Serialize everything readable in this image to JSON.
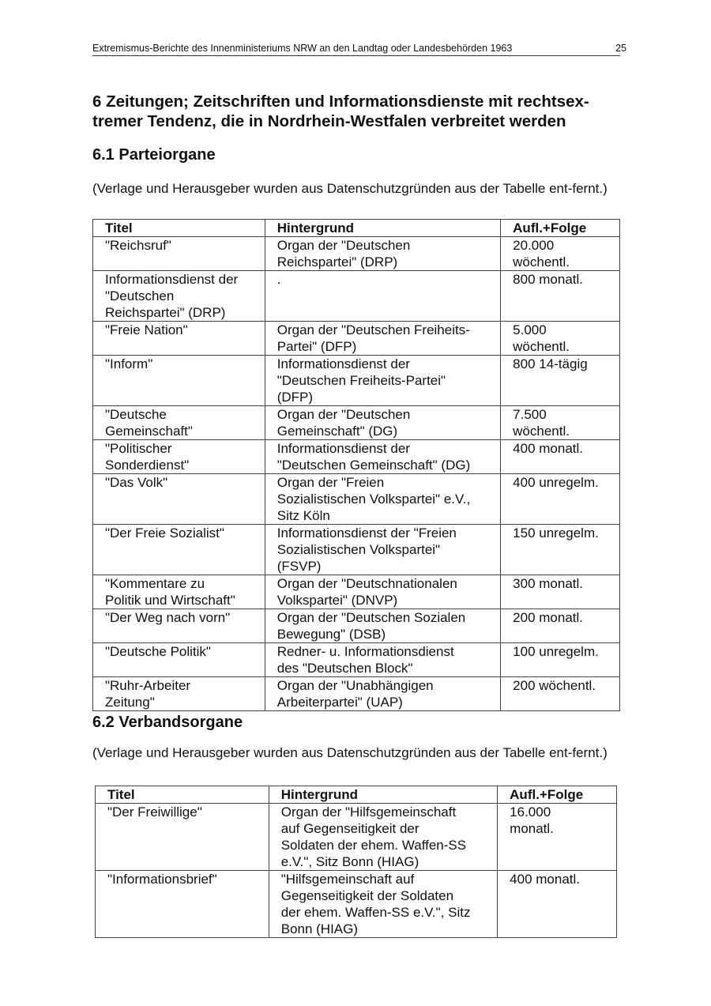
{
  "header": {
    "title": "Extremismus-Berichte des Innenministeriums NRW an den Landtag oder Landesbehörden 1963",
    "page_number": "25"
  },
  "chapter_title": "6 Zeitungen; Zeitschriften und Informationsdienste mit rechtsex-\ntremer Tendenz, die in Nordrhein-Westfalen verbreitet werden",
  "sections": [
    {
      "title": "6.1 Parteiorgane",
      "note": "(Verlage und Herausgeber wurden aus Datenschutzgründen aus der Tabelle ent-fernt.)",
      "columns": [
        "Titel",
        "Hintergrund",
        "Aufl.+Folge"
      ],
      "rows": [
        [
          "\"Reichsruf\"",
          "Organ der \"Deutschen\nReichspartei\" (DRP)",
          "20.000\nwöchentl."
        ],
        [
          "Informationsdienst der\n\"Deutschen\nReichspartei\" (DRP)",
          ".",
          "800 monatl."
        ],
        [
          "\"Freie Nation\"",
          "Organ der \"Deutschen Freiheits-\nPartei\" (DFP)",
          "5.000\nwöchentl."
        ],
        [
          "\"Inform\"",
          "Informationsdienst der\n\"Deutschen Freiheits-Partei\"\n(DFP)",
          "800 14-tägig"
        ],
        [
          "\"Deutsche\nGemeinschaft\"",
          "Organ der \"Deutschen\nGemeinschaft\" (DG)",
          "7.500\nwöchentl."
        ],
        [
          "\"Politischer\nSonderdienst\"",
          "Informationsdienst der\n\"Deutschen Gemeinschaft\" (DG)",
          "400 monatl."
        ],
        [
          "\"Das Volk\"",
          "Organ der \"Freien\nSozialistischen Volkspartei\" e.V.,\nSitz Köln",
          "400 unregelm."
        ],
        [
          "\"Der Freie Sozialist\"",
          "Informationsdienst der \"Freien\nSozialistischen Volkspartei\"\n(FSVP)",
          "150 unregelm."
        ],
        [
          "\"Kommentare zu\nPolitik und Wirtschaft\"",
          "Organ der \"Deutschnationalen\nVolkspartei\" (DNVP)",
          "300 monatl."
        ],
        [
          "\"Der Weg nach vorn\"",
          "Organ der \"Deutschen Sozialen\nBewegung\" (DSB)",
          "200 monatl."
        ],
        [
          "\"Deutsche Politik\"",
          "Redner- u. Informationsdienst\ndes \"Deutschen Block\"",
          "100 unregelm."
        ],
        [
          "\"Ruhr-Arbeiter\nZeitung\"",
          "Organ der \"Unabhängigen\nArbeiterpartei\" (UAP)",
          "200 wöchentl."
        ]
      ]
    },
    {
      "title": "6.2 Verbandsorgane",
      "note": "(Verlage und Herausgeber wurden aus Datenschutzgründen aus der Tabelle ent-fernt.)",
      "columns": [
        "Titel",
        "Hintergrund",
        "Aufl.+Folge"
      ],
      "rows": [
        [
          "\"Der Freiwillige\"",
          "Organ der \"Hilfsgemeinschaft\nauf Gegenseitigkeit der\nSoldaten der ehem. Waffen-SS\ne.V.\", Sitz Bonn (HIAG)",
          "16.000\nmonatl."
        ],
        [
          "\"Informationsbrief\"",
          "\"Hilfsgemeinschaft auf\nGegenseitigkeit der Soldaten\nder ehem. Waffen-SS e.V.\", Sitz\nBonn (HIAG)",
          "400 monatl."
        ]
      ]
    }
  ]
}
